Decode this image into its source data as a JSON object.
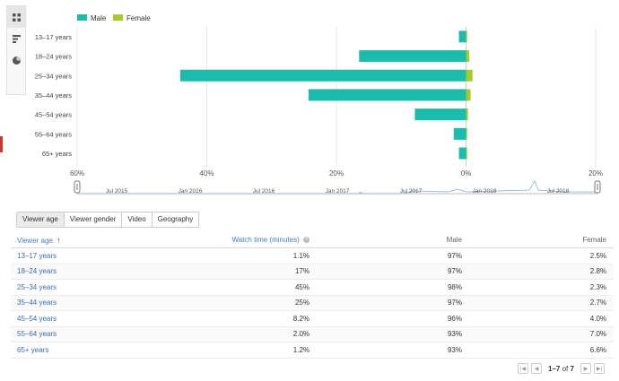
{
  "legend": {
    "male": "Male",
    "female": "Female"
  },
  "colors": {
    "male": "#1bbcac",
    "female": "#a5cb2a",
    "link": "#3a6ea5"
  },
  "icons": [
    "grid-icon",
    "bar-chart-icon",
    "pie-chart-icon"
  ],
  "chart_data": {
    "type": "bar",
    "orientation": "horizontal-diverging",
    "categories": [
      "13–17 years",
      "18–24 years",
      "25–34 years",
      "35–44 years",
      "45–54 years",
      "55–64 years",
      "65+ years"
    ],
    "series": [
      {
        "name": "Male",
        "values": [
          1.1,
          16.5,
          44.1,
          24.3,
          7.9,
          1.9,
          1.1
        ]
      },
      {
        "name": "Female",
        "values": [
          0.03,
          0.5,
          1.0,
          0.7,
          0.3,
          0.14,
          0.08
        ]
      }
    ],
    "x_ticks": [
      "60%",
      "40%",
      "20%",
      "0%",
      "20%"
    ],
    "xlim_left": 60,
    "xlim_right": 20,
    "grid": true,
    "legend_position": "top-left"
  },
  "timeline": {
    "labels": [
      "Jul 2015",
      "Jan 2016",
      "Jul 2016",
      "Jan 2017",
      "Jul 2017",
      "Jan 2018",
      "Jul 2018"
    ]
  },
  "tabs": [
    "Viewer age",
    "Viewer gender",
    "Video",
    "Geography"
  ],
  "table": {
    "headers": {
      "age": "Viewer age",
      "watch": "Watch time (minutes)",
      "male": "Male",
      "female": "Female"
    },
    "rows": [
      {
        "age": "13–17 years",
        "watch": "1.1%",
        "male": "97%",
        "female": "2.5%"
      },
      {
        "age": "18–24 years",
        "watch": "17%",
        "male": "97%",
        "female": "2.8%"
      },
      {
        "age": "25–34 years",
        "watch": "45%",
        "male": "98%",
        "female": "2.3%"
      },
      {
        "age": "35–44 years",
        "watch": "25%",
        "male": "97%",
        "female": "2.7%"
      },
      {
        "age": "45–54 years",
        "watch": "8.2%",
        "male": "96%",
        "female": "4.0%"
      },
      {
        "age": "55–64 years",
        "watch": "2.0%",
        "male": "93%",
        "female": "7.0%"
      },
      {
        "age": "65+ years",
        "watch": "1.2%",
        "male": "93%",
        "female": "6.6%"
      }
    ]
  },
  "pagination": {
    "range": "1–7",
    "of": "of",
    "total": "7"
  }
}
